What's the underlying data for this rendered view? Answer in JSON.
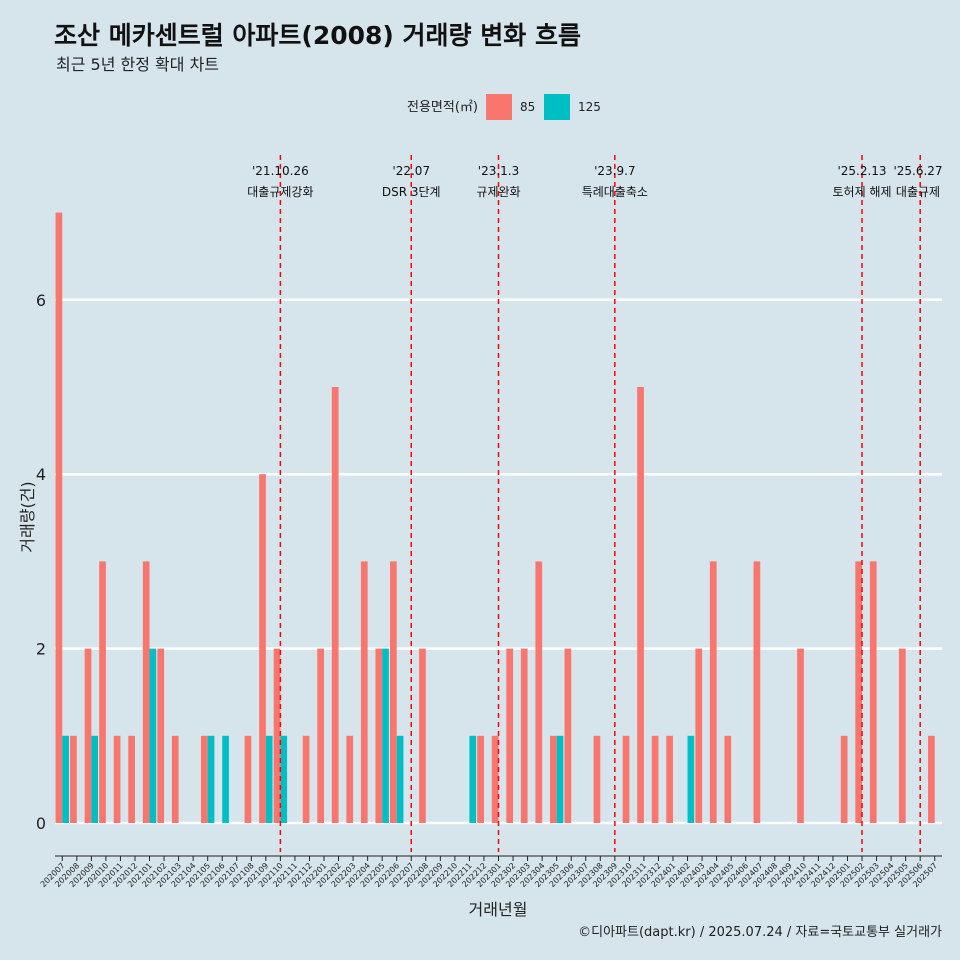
{
  "chart_data": {
    "type": "bar",
    "title": "조산 메카센트럴 아파트(2008) 거래량 변화 흐름",
    "subtitle": "최근 5년 한정 확대 차트",
    "xlabel": "거래년월",
    "ylabel": "거래량(건)",
    "caption": "©디아파트(dapt.kr) / 2025.07.24 / 자료=국토교통부 실거래가",
    "legend": {
      "title": "전용면적(㎡)",
      "position": "top",
      "entries": [
        {
          "label": "85",
          "color": "#f8766d"
        },
        {
          "label": "125",
          "color": "#00bfc4"
        }
      ]
    },
    "ylim": [
      0,
      7
    ],
    "yticks": [
      0,
      2,
      4,
      6
    ],
    "grid": true,
    "categories": [
      "202007",
      "202008",
      "202009",
      "202010",
      "202011",
      "202012",
      "202101",
      "202102",
      "202103",
      "202104",
      "202105",
      "202106",
      "202107",
      "202108",
      "202109",
      "202110",
      "202111",
      "202112",
      "202201",
      "202202",
      "202203",
      "202204",
      "202205",
      "202206",
      "202207",
      "202208",
      "202209",
      "202210",
      "202211",
      "202212",
      "202301",
      "202302",
      "202303",
      "202304",
      "202305",
      "202306",
      "202307",
      "202308",
      "202309",
      "202310",
      "202311",
      "202312",
      "202401",
      "202402",
      "202403",
      "202404",
      "202405",
      "202406",
      "202407",
      "202408",
      "202409",
      "202410",
      "202411",
      "202412",
      "202501",
      "202502",
      "202503",
      "202504",
      "202505",
      "202506",
      "202507"
    ],
    "series": [
      {
        "name": "85",
        "color": "#f8766d",
        "values": [
          7,
          1,
          2,
          3,
          1,
          1,
          3,
          2,
          1,
          0,
          1,
          0,
          0,
          1,
          4,
          2,
          0,
          1,
          2,
          5,
          1,
          3,
          2,
          3,
          0,
          2,
          0,
          0,
          0,
          1,
          1,
          2,
          2,
          3,
          1,
          2,
          0,
          1,
          0,
          1,
          5,
          1,
          1,
          0,
          2,
          3,
          1,
          0,
          3,
          0,
          0,
          2,
          0,
          0,
          1,
          3,
          3,
          0,
          2,
          0,
          1
        ]
      },
      {
        "name": "125",
        "color": "#00bfc4",
        "values": [
          1,
          0,
          1,
          0,
          0,
          0,
          2,
          0,
          0,
          0,
          1,
          1,
          0,
          0,
          1,
          1,
          0,
          0,
          0,
          0,
          0,
          0,
          2,
          1,
          0,
          0,
          0,
          0,
          1,
          0,
          0,
          0,
          0,
          0,
          1,
          0,
          0,
          0,
          0,
          0,
          0,
          0,
          0,
          1,
          0,
          0,
          0,
          0,
          0,
          0,
          0,
          0,
          0,
          0,
          0,
          0,
          0,
          0,
          0,
          0,
          0
        ]
      }
    ],
    "events": [
      {
        "date": "'21.10.26",
        "label": "대출규제강화",
        "at": "202110"
      },
      {
        "date": "'22.07",
        "label": "DSR 3단계",
        "at": "202207"
      },
      {
        "date": "'23.1.3",
        "label": "규제완화",
        "at": "202301"
      },
      {
        "date": "'23.9.7",
        "label": "특례대출축소",
        "at": "202309"
      },
      {
        "date": "'25.2.13",
        "label": "토허제 해제",
        "at": "202502"
      },
      {
        "date": "'25.6.27",
        "label": "대출규제",
        "at": "202506"
      }
    ]
  }
}
